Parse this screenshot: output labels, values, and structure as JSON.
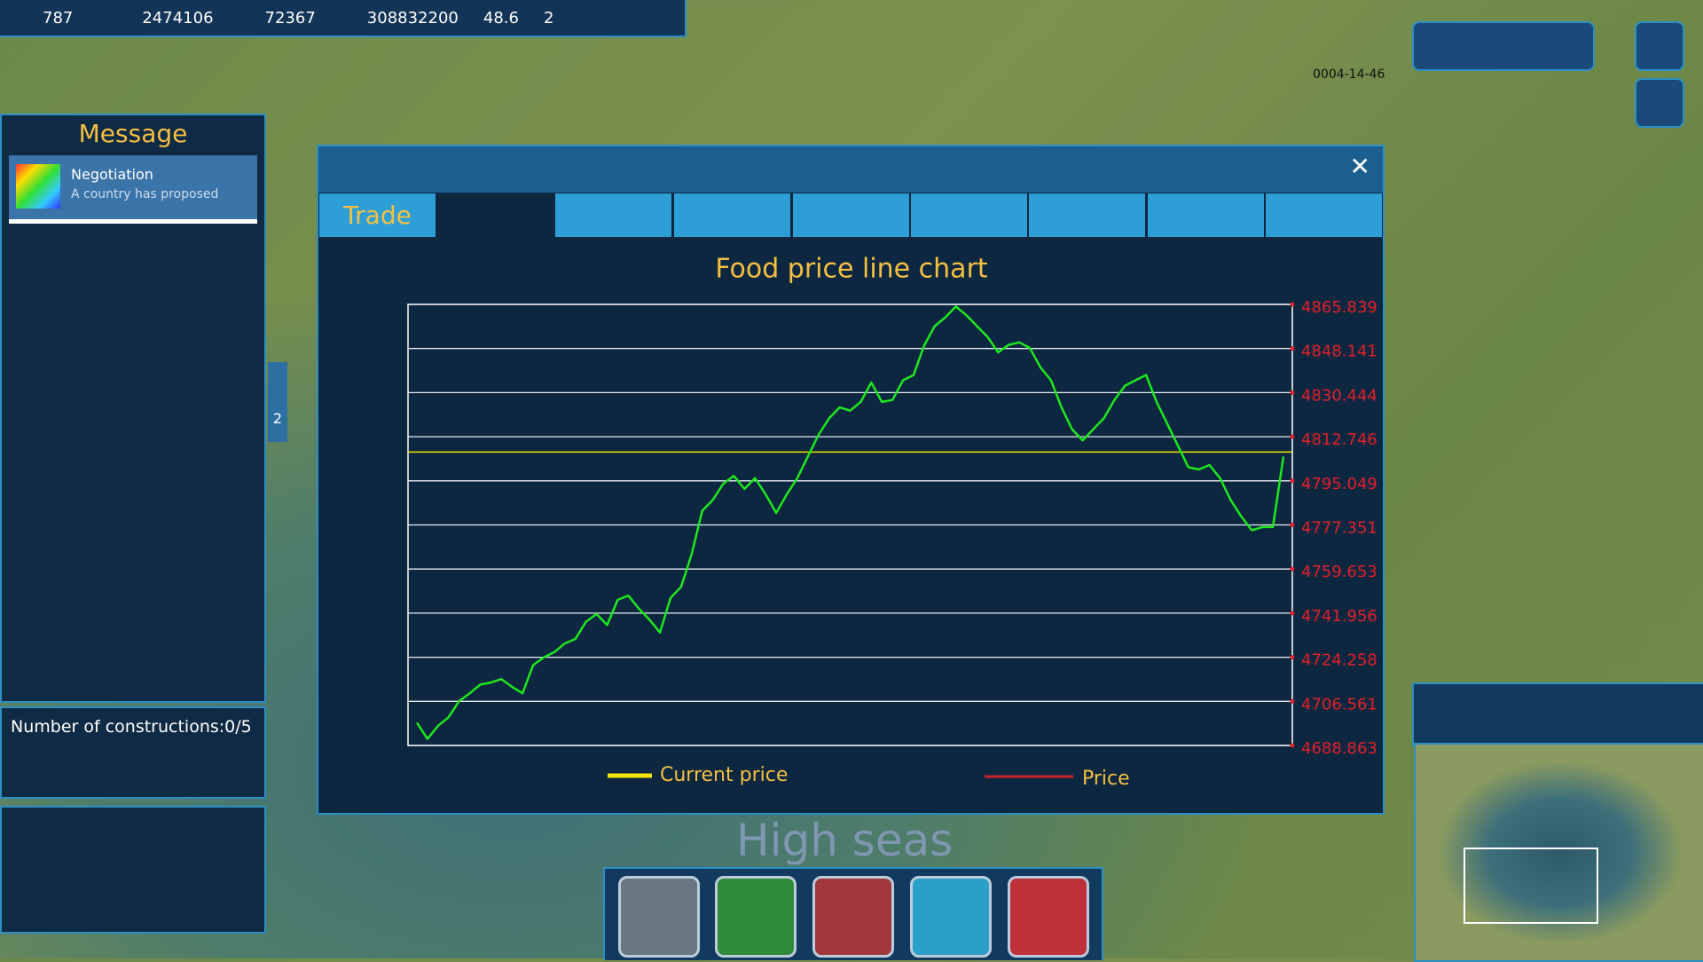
{
  "top_bar": {
    "population": 787,
    "money": 2474106,
    "science": 72367,
    "resources": 308832200,
    "influence": 48.6,
    "trophies": 2
  },
  "date": "0004-14-46",
  "message_panel": {
    "title": "Message",
    "items": [
      {
        "title": "Negotiation",
        "text": "A country has proposed"
      }
    ],
    "tab_count": 2,
    "constructions": "Number of constructions:0/5"
  },
  "region": "High seas",
  "window": {
    "tabs": [
      "Trade"
    ]
  },
  "chart_data": {
    "type": "line",
    "title": "Food price line chart",
    "series": [
      {
        "name": "Price",
        "color": "#1ee61e",
        "legend_color": "#d0202a",
        "values": [
          4698.0,
          4691.5,
          4696.7,
          4700.2,
          4706.7,
          4709.8,
          4713.3,
          4714.1,
          4715.5,
          4712.4,
          4709.8,
          4721.1,
          4724.2,
          4726.3,
          4729.8,
          4731.6,
          4738.5,
          4741.6,
          4737.2,
          4747.3,
          4749.0,
          4743.8,
          4739.4,
          4734.2,
          4748.1,
          4752.5,
          4765.6,
          4783.0,
          4787.4,
          4793.9,
          4797.0,
          4791.8,
          4796.1,
          4789.6,
          4782.2,
          4789.6,
          4796.1,
          4804.8,
          4813.5,
          4820.1,
          4824.5,
          4823.2,
          4826.7,
          4834.5,
          4826.7,
          4827.5,
          4835.4,
          4837.5,
          4849.3,
          4857.1,
          4860.6,
          4865.0,
          4861.5,
          4857.1,
          4852.8,
          4846.6,
          4849.6,
          4850.6,
          4848.4,
          4840.6,
          4835.4,
          4824.5,
          4815.7,
          4811.3,
          4815.7,
          4820.1,
          4827.5,
          4833.2,
          4835.4,
          4837.5,
          4826.7,
          4818.0,
          4809.2,
          4800.5,
          4799.6,
          4801.4,
          4796.1,
          4787.4,
          4780.8,
          4775.2,
          4776.5,
          4776.5,
          4804.8
        ]
      }
    ],
    "current_price": {
      "name": "Current price",
      "value": 4806.6,
      "color": "#f2e600"
    },
    "ylim": [
      4688.863,
      4865.839
    ],
    "yticks": [
      4688.863,
      4706.561,
      4724.258,
      4741.956,
      4759.653,
      4777.351,
      4795.049,
      4812.746,
      4830.444,
      4848.141,
      4865.839
    ],
    "grid": true
  }
}
